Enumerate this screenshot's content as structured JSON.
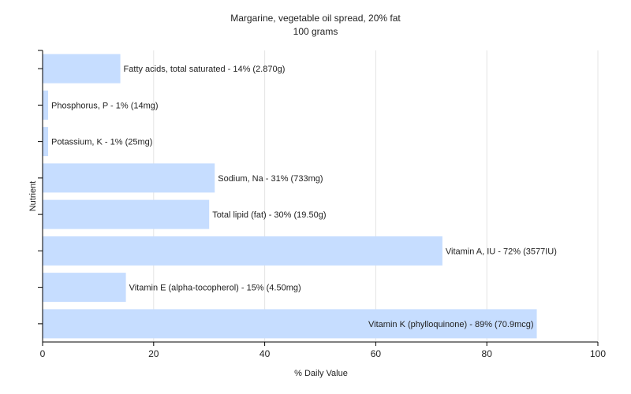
{
  "chart_data": {
    "type": "bar",
    "orientation": "horizontal",
    "title": "Margarine, vegetable oil spread, 20% fat",
    "subtitle": "100 grams",
    "xlabel": "% Daily Value",
    "ylabel": "Nutrient",
    "xlim": [
      0,
      100
    ],
    "xticks": [
      0,
      20,
      40,
      60,
      80,
      100
    ],
    "grid": true,
    "bar_color": "#c6ddff",
    "categories": [
      "Fatty acids, total saturated",
      "Phosphorus, P",
      "Potassium, K",
      "Sodium, Na",
      "Total lipid (fat)",
      "Vitamin A, IU",
      "Vitamin E (alpha-tocopherol)",
      "Vitamin K (phylloquinone)"
    ],
    "values": [
      14,
      1,
      1,
      31,
      30,
      72,
      15,
      89
    ],
    "labels": [
      "Fatty acids, total saturated - 14% (2.870g)",
      "Phosphorus, P - 1% (14mg)",
      "Potassium, K - 1% (25mg)",
      "Sodium, Na - 31% (733mg)",
      "Total lipid (fat) - 30% (19.50g)",
      "Vitamin A, IU - 72% (3577IU)",
      "Vitamin E (alpha-tocopherol) - 15% (4.50mg)",
      "Vitamin K (phylloquinone) - 89% (70.9mcg)"
    ]
  }
}
